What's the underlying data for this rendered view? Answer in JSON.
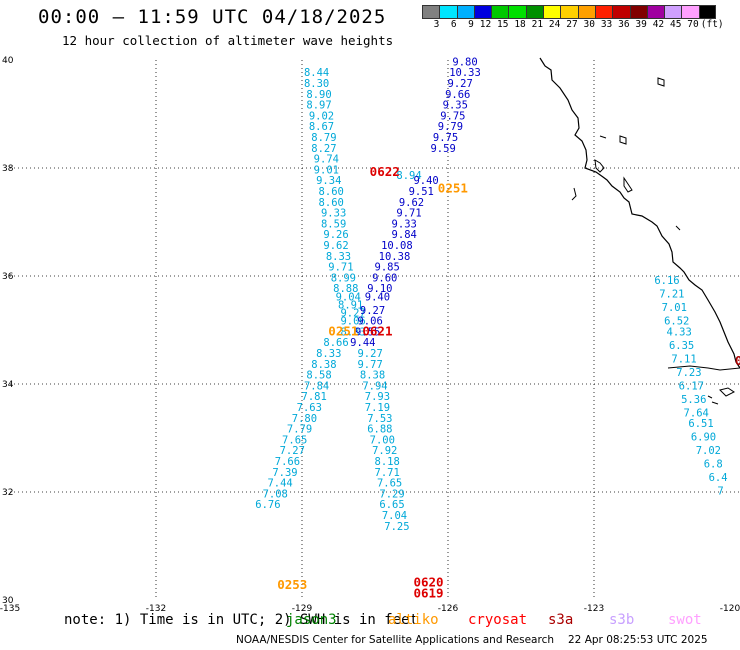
{
  "title": "00:00 – 11:59 UTC 04/18/2025",
  "subtitle": "12 hour collection of altimeter wave heights",
  "legend": {
    "labels": [
      "3",
      "6",
      "9",
      "12",
      "15",
      "18",
      "21",
      "24",
      "27",
      "30",
      "33",
      "36",
      "39",
      "42",
      "45",
      "70"
    ],
    "colors": [
      "#808080",
      "#00e5ff",
      "#00b0ff",
      "#0000e0",
      "#00c800",
      "#00e000",
      "#009000",
      "#ffff00",
      "#ffd000",
      "#ffa000",
      "#ff2000",
      "#c00000",
      "#800000",
      "#a000a0",
      "#d0a0ff",
      "#ffa0ff",
      "#000000"
    ],
    "unit": "(ft)"
  },
  "axes": {
    "lon_labels": [
      "-135",
      "-132",
      "-129",
      "-126",
      "-123",
      "-120"
    ],
    "lat_labels": [
      "40",
      "38",
      "36",
      "34",
      "32",
      "30"
    ],
    "lon_range": [
      -135,
      -120
    ],
    "lat_range": [
      30,
      40
    ]
  },
  "map_data": {
    "tracks": [
      {
        "name": "jason3",
        "color": "#00a8d8",
        "labels": [
          "8.44",
          "8.30",
          "8.90",
          "8.97",
          "9.02",
          "8.67",
          "8.79",
          "8.27",
          "9.74",
          "9.01",
          "9.34",
          "8.60",
          "8.60",
          "9.33",
          "8.59",
          "9.26",
          "9.62",
          "8.33",
          "9.71",
          "8.99",
          "8.88",
          "9.04",
          "8.91",
          "9.27",
          "9.06",
          "8.83",
          "8.66",
          "8.33",
          "8.38",
          "8.58",
          "7.84",
          "7.81",
          "7.63",
          "7.80",
          "7.79",
          "7.65",
          "7.27",
          "7.66",
          "7.39",
          "7.44",
          "7.08",
          "6.76"
        ],
        "lon": [
          -128.7,
          -128.7,
          -128.65,
          -128.65,
          -128.6,
          -128.6,
          -128.55,
          -128.55,
          -128.5,
          -128.5,
          -128.45,
          -128.4,
          -128.4,
          -128.35,
          -128.35,
          -128.3,
          -128.3,
          -128.25,
          -128.2,
          -128.15,
          -128.1,
          -128.05,
          -128.0,
          -127.95,
          -127.95,
          -127.95,
          -128.3,
          -128.45,
          -128.55,
          -128.65,
          -128.7,
          -128.75,
          -128.85,
          -128.95,
          -129.05,
          -129.15,
          -129.2,
          -129.3,
          -129.35,
          -129.45,
          -129.55,
          -129.7
        ],
        "lat": [
          39.7,
          39.5,
          39.3,
          39.1,
          38.9,
          38.7,
          38.5,
          38.3,
          38.1,
          37.9,
          37.7,
          37.5,
          37.3,
          37.1,
          36.9,
          36.7,
          36.5,
          36.3,
          36.1,
          35.9,
          35.7,
          35.55,
          35.4,
          35.25,
          35.1,
          34.9,
          34.7,
          34.5,
          34.3,
          34.1,
          33.9,
          33.7,
          33.5,
          33.3,
          33.1,
          32.9,
          32.7,
          32.5,
          32.3,
          32.1,
          31.9,
          31.7
        ]
      },
      {
        "name": "jason3-b",
        "color": "#00a8d8",
        "labels": [
          "8.94",
          "9.27",
          "9.77",
          "8.38",
          "7.94",
          "7.93",
          "7.19",
          "7.53",
          "6.88",
          "7.00",
          "7.92",
          "8.18",
          "7.71",
          "7.65",
          "7.29",
          "6.65",
          "7.04",
          "7.25"
        ],
        "lon": [
          -126.8,
          -127.6,
          -127.6,
          -127.55,
          -127.5,
          -127.45,
          -127.45,
          -127.4,
          -127.4,
          -127.35,
          -127.3,
          -127.25,
          -127.25,
          -127.2,
          -127.15,
          -127.15,
          -127.1,
          -127.05
        ],
        "lat": [
          37.8,
          34.5,
          34.3,
          34.1,
          33.9,
          33.7,
          33.5,
          33.3,
          33.1,
          32.9,
          32.7,
          32.5,
          32.3,
          32.1,
          31.9,
          31.7,
          31.5,
          31.3
        ]
      },
      {
        "name": "cryosat-blue",
        "color": "#0000c8",
        "labels": [
          "9.80",
          "10.33",
          "9.27",
          "9.66",
          "9.35",
          "9.75",
          "9.79",
          "9.75",
          "9.59",
          "9.40",
          "9.51",
          "9.62",
          "9.71",
          "9.33",
          "9.84",
          "10.08",
          "10.38",
          "9.85",
          "9.60",
          "9.10",
          "9.40",
          "9.27",
          "9.06",
          "9.55",
          "9.44"
        ],
        "lon": [
          -125.65,
          -125.65,
          -125.75,
          -125.8,
          -125.85,
          -125.9,
          -125.95,
          -126.05,
          -126.1,
          -126.45,
          -126.55,
          -126.75,
          -126.8,
          -126.9,
          -126.9,
          -127.05,
          -127.1,
          -127.25,
          -127.3,
          -127.4,
          -127.45,
          -127.55,
          -127.6,
          -127.65,
          -127.75
        ],
        "lat": [
          39.9,
          39.7,
          39.5,
          39.3,
          39.1,
          38.9,
          38.7,
          38.5,
          38.3,
          37.7,
          37.5,
          37.3,
          37.1,
          36.9,
          36.7,
          36.5,
          36.3,
          36.1,
          35.9,
          35.7,
          35.55,
          35.3,
          35.1,
          34.9,
          34.7
        ]
      },
      {
        "name": "coast",
        "color": "#00a8d8",
        "labels": [
          "6.16",
          "7.21",
          "7.01",
          "6.52",
          "4.33",
          "6.35",
          "7.11",
          "7.23",
          "6.17",
          "5.36",
          "7.64",
          "6.51",
          "6.90",
          "7.02",
          "6.8",
          "6.4",
          "7"
        ],
        "lon": [
          -121.5,
          -121.4,
          -121.35,
          -121.3,
          -121.25,
          -121.2,
          -121.15,
          -121.05,
          -121.0,
          -120.95,
          -120.9,
          -120.8,
          -120.75,
          -120.65,
          -120.55,
          -120.45,
          -120.4
        ],
        "lat": [
          35.85,
          35.6,
          35.35,
          35.1,
          34.9,
          34.65,
          34.4,
          34.15,
          33.9,
          33.65,
          33.4,
          33.2,
          32.95,
          32.7,
          32.45,
          32.2,
          31.95
        ]
      }
    ],
    "pass_labels": [
      {
        "text": "0622",
        "color": "#dd0000",
        "lon": -127.3,
        "lat": 37.85
      },
      {
        "text": "0251",
        "color": "#ff9900",
        "lon": -125.9,
        "lat": 37.55
      },
      {
        "text": "0251",
        "color": "#ff9900",
        "lon": -128.15,
        "lat": 34.9
      },
      {
        "text": "0621",
        "color": "#dd0000",
        "lon": -127.45,
        "lat": 34.9
      },
      {
        "text": "0253",
        "color": "#ff9900",
        "lon": -129.2,
        "lat": 30.2
      },
      {
        "text": "0620",
        "color": "#dd0000",
        "lon": -126.4,
        "lat": 30.25
      },
      {
        "text": "0619",
        "color": "#dd0000",
        "lon": -126.4,
        "lat": 30.05
      },
      {
        "text": "0",
        "color": "#aa0000",
        "lon": -119.95,
        "lat": 34.35
      }
    ]
  },
  "note": "note: 1) Time is in UTC; 2) SWH is in feet",
  "satellites": [
    {
      "label": "jason3",
      "color": "#008000"
    },
    {
      "label": "altiko",
      "color": "#ff9900"
    },
    {
      "label": "cryosat",
      "color": "#ff0000"
    },
    {
      "label": "s3a",
      "color": "#aa0000"
    },
    {
      "label": "s3b",
      "color": "#c8a0ff"
    },
    {
      "label": "swot",
      "color": "#ffa0ff"
    }
  ],
  "credit": "NOAA/NESDIS Center for Satellite Applications and Research",
  "timestamp": "22 Apr 08:25:53 UTC 2025"
}
